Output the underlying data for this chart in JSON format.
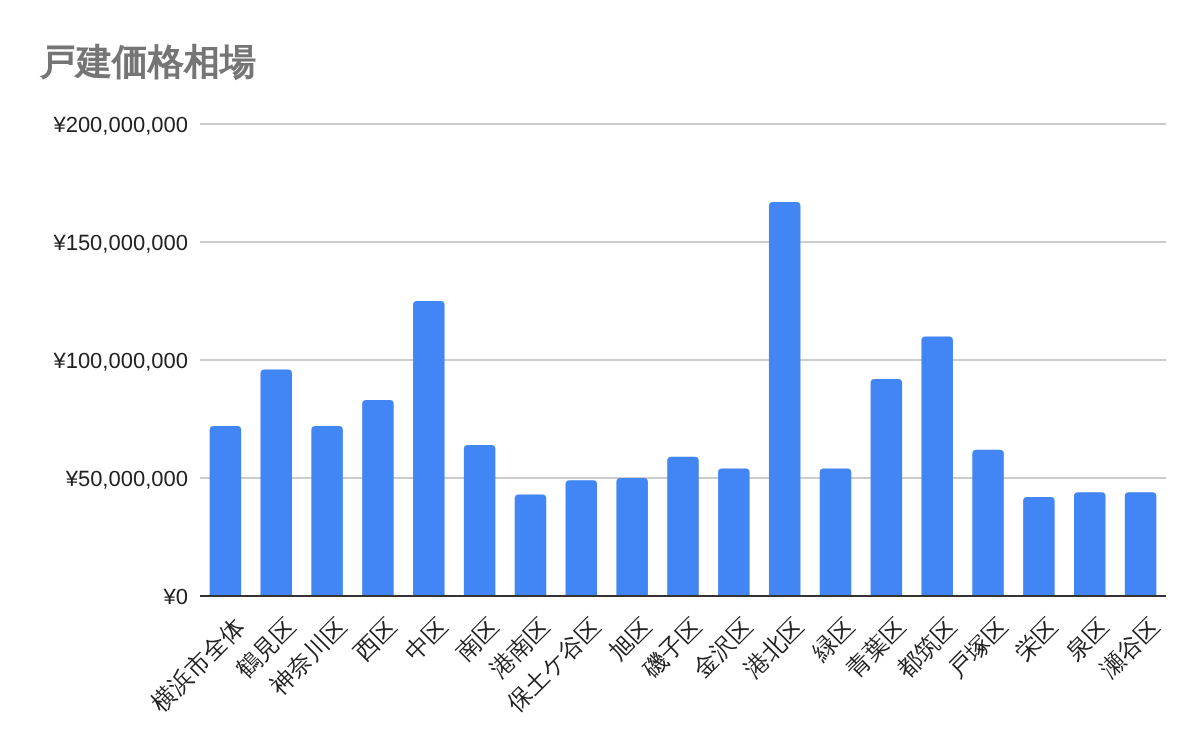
{
  "chart_data": {
    "type": "bar",
    "title": "戸建価格相場",
    "categories": [
      "横浜市全体",
      "鶴見区",
      "神奈川区",
      "西区",
      "中区",
      "南区",
      "港南区",
      "保土ケ谷区",
      "旭区",
      "磯子区",
      "金沢区",
      "港北区",
      "緑区",
      "青葉区",
      "都筑区",
      "戸塚区",
      "栄区",
      "泉区",
      "瀬谷区"
    ],
    "values": [
      72000000,
      96000000,
      72000000,
      83000000,
      125000000,
      64000000,
      43000000,
      49000000,
      50000000,
      59000000,
      54000000,
      167000000,
      54000000,
      92000000,
      110000000,
      62000000,
      42000000,
      44000000,
      44000000
    ],
    "color": "#4285f4",
    "ylim": [
      0,
      200000000
    ],
    "yticks": [
      {
        "value": 0,
        "label": "¥0"
      },
      {
        "value": 50000000,
        "label": "¥50,000,000"
      },
      {
        "value": 100000000,
        "label": "¥100,000,000"
      },
      {
        "value": 150000000,
        "label": "¥150,000,000"
      },
      {
        "value": 200000000,
        "label": "¥200,000,000"
      }
    ],
    "grid": "y"
  }
}
